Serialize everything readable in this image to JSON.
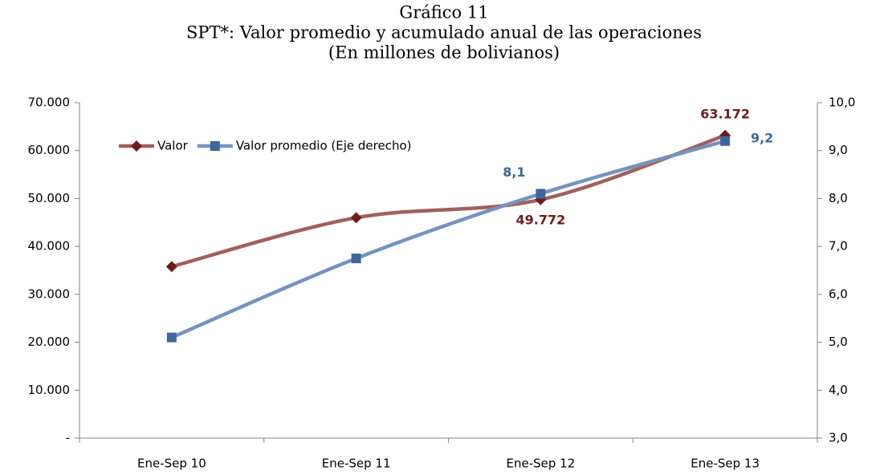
{
  "chart_data": {
    "type": "line",
    "title": [
      "Gráfico 11",
      "SPT*: Valor promedio y acumulado anual de las operaciones",
      "(En millones de bolivianos)"
    ],
    "categories": [
      "Ene-Sep 10",
      "Ene-Sep 11",
      "Ene-Sep 12",
      "Ene-Sep 13"
    ],
    "series": [
      {
        "name": "Valor",
        "color": "#a0615c",
        "marker_color": "#6e1c1c",
        "marker": "diamond",
        "values": [
          35800,
          46000,
          49772,
          63172
        ],
        "value_labels": [
          null,
          null,
          "49.772",
          "63.172"
        ]
      },
      {
        "name": "Valor promedio (Eje derecho)",
        "color": "#7593bd",
        "marker_color": "#3d679a",
        "marker": "square",
        "axis": "y2",
        "values": [
          5.1,
          6.75,
          8.1,
          9.2
        ],
        "value_labels": [
          null,
          null,
          "8,1",
          "9,2"
        ]
      }
    ],
    "ylim": [
      0,
      70000
    ],
    "yticks": [
      {
        "value": 0,
        "label": "-"
      },
      {
        "value": 10000,
        "label": "10.000"
      },
      {
        "value": 20000,
        "label": "20.000"
      },
      {
        "value": 30000,
        "label": "30.000"
      },
      {
        "value": 40000,
        "label": "40.000"
      },
      {
        "value": 50000,
        "label": "50.000"
      },
      {
        "value": 60000,
        "label": "60.000"
      },
      {
        "value": 70000,
        "label": "70.000"
      }
    ],
    "y2lim": [
      3,
      10
    ],
    "y2ticks": [
      {
        "value": 3,
        "label": "3,0"
      },
      {
        "value": 4,
        "label": "4,0"
      },
      {
        "value": 5,
        "label": "5,0"
      },
      {
        "value": 6,
        "label": "6,0"
      },
      {
        "value": 7,
        "label": "7,0"
      },
      {
        "value": 8,
        "label": "8,0"
      },
      {
        "value": 9,
        "label": "9,0"
      },
      {
        "value": 10,
        "label": "10,0"
      }
    ],
    "smooth": true,
    "legend": "top-left"
  }
}
